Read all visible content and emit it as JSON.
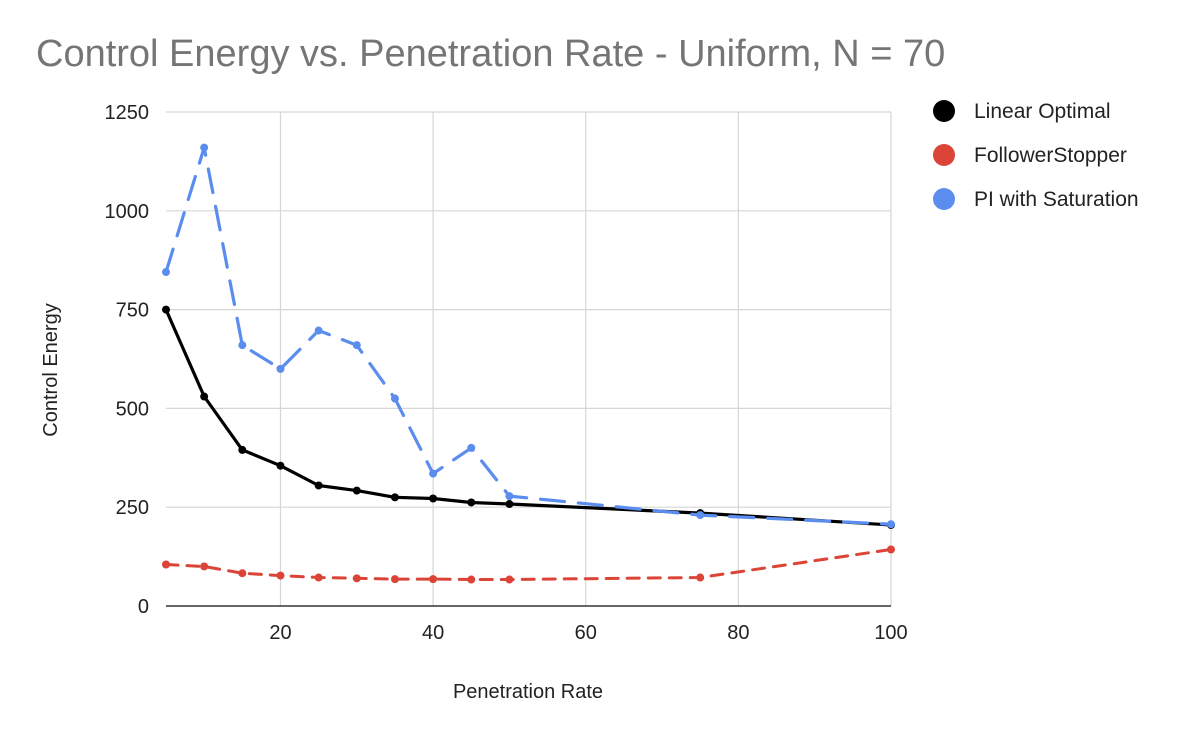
{
  "chart_data": {
    "type": "line",
    "title": "Control Energy vs. Penetration Rate - Uniform, N = 70",
    "xlabel": "Penetration Rate",
    "ylabel": "Control Energy",
    "xlim": [
      5,
      100
    ],
    "ylim": [
      0,
      1250
    ],
    "x_ticks": [
      20,
      40,
      60,
      80,
      100
    ],
    "y_ticks": [
      0,
      250,
      500,
      750,
      1000,
      1250
    ],
    "grid": true,
    "legend_position": "right",
    "series": [
      {
        "name": "Linear Optimal",
        "color": "#000000",
        "line_style": "solid",
        "x": [
          5,
          10,
          15,
          20,
          25,
          30,
          35,
          40,
          45,
          50,
          75,
          100
        ],
        "values": [
          750,
          530,
          395,
          355,
          305,
          292,
          275,
          272,
          262,
          258,
          235,
          205
        ]
      },
      {
        "name": "FollowerStopper",
        "color": "#db4437",
        "line_style": "dashed",
        "x": [
          5,
          10,
          15,
          20,
          25,
          30,
          35,
          40,
          45,
          50,
          75,
          100
        ],
        "values": [
          105,
          100,
          83,
          77,
          72,
          70,
          68,
          68,
          67,
          67,
          72,
          143
        ]
      },
      {
        "name": "PI with Saturation",
        "color": "#5b8def",
        "line_style": "dashed",
        "x": [
          5,
          10,
          15,
          20,
          25,
          30,
          35,
          40,
          45,
          50,
          75,
          100
        ],
        "values": [
          845,
          1160,
          660,
          600,
          697,
          660,
          525,
          335,
          400,
          278,
          230,
          207
        ]
      }
    ]
  }
}
